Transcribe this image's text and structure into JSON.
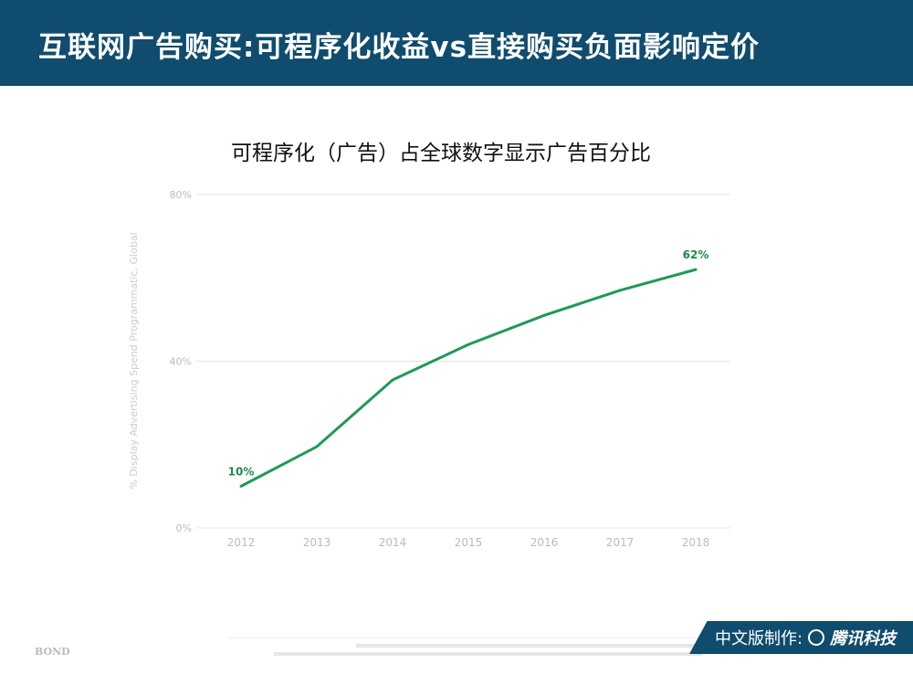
{
  "header": {
    "title": "互联网广告购买:可程序化收益vs直接购买负面影响定价"
  },
  "badge": {
    "label": "中文版制作:",
    "brand": "腾讯科技"
  },
  "footer": {
    "logo": "BOND"
  },
  "colors": {
    "header": "#0f4c6e",
    "line": "#1f9a55"
  },
  "chart_data": {
    "type": "line",
    "title": "可程序化（广告）占全球数字显示广告百分比",
    "ylabel": "% Display Advertising Spend Programmatic, Global",
    "xlabel": "",
    "categories": [
      "2012",
      "2013",
      "2014",
      "2015",
      "2016",
      "2017",
      "2018"
    ],
    "series": [
      {
        "values": [
          10,
          19.5,
          35.5,
          44,
          51,
          57,
          62
        ]
      }
    ],
    "data_labels": [
      {
        "index": 0,
        "text": "10%"
      },
      {
        "index": 6,
        "text": "62%"
      }
    ],
    "ylim": [
      0,
      80
    ],
    "yticks": [
      {
        "value": 0,
        "label": "0%"
      },
      {
        "value": 40,
        "label": "40%"
      },
      {
        "value": 80,
        "label": "80%"
      }
    ],
    "grid": true
  }
}
